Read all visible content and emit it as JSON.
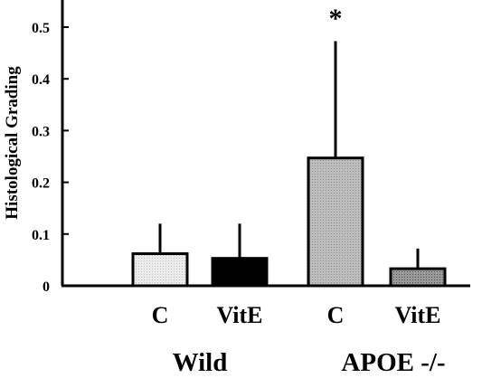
{
  "chart_data": {
    "type": "bar",
    "title": "",
    "ylabel": "Histological Grading",
    "xlabel": "",
    "ylim": [
      0,
      0.55
    ],
    "yticks": [
      0,
      0.1,
      0.2,
      0.3,
      0.4,
      0.5
    ],
    "ytick_labels": [
      "0",
      "0.1",
      "0.2",
      "0.3",
      "0.4",
      "0.5"
    ],
    "grid": false,
    "legend": "none",
    "groups": [
      "Wild",
      "APOE -/-"
    ],
    "categories": [
      "C",
      "VitE",
      "C",
      "VitE"
    ],
    "category_group": [
      0,
      0,
      1,
      1
    ],
    "values": [
      0.062,
      0.053,
      0.247,
      0.033
    ],
    "error_upper": [
      0.12,
      0.12,
      0.473,
      0.072
    ],
    "bar_colors": [
      "#e6e6e6",
      "#000000",
      "#b4b4b4",
      "#8a8a8a"
    ],
    "annotations": [
      {
        "category_index": 2,
        "text": "*"
      }
    ]
  }
}
